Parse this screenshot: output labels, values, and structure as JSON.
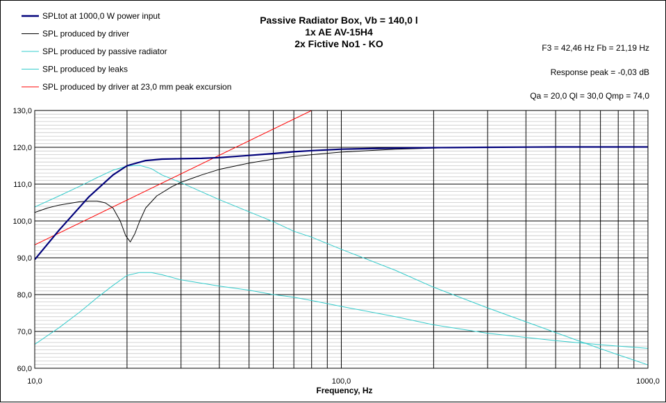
{
  "chart_data": {
    "type": "line",
    "title_lines": [
      "Passive Radiator Box, Vb = 140,0 l",
      "1x AE AV-15H4",
      "2x Fictive No1 - KO"
    ],
    "info": [
      "F3 = 42,46  Hz  Fb = 21,19  Hz",
      "Response peak = -0,03  dB",
      "Qa = 20,0  Ql = 30,0  Qmp = 74,0"
    ],
    "xlabel": "Frequency, Hz",
    "ylabel": "",
    "x_scale": "log",
    "xlim": [
      10,
      1000
    ],
    "ylim": [
      60,
      130
    ],
    "x_ticks": [
      {
        "v": 10,
        "label": "10,0"
      },
      {
        "v": 100,
        "label": "100,0"
      },
      {
        "v": 1000,
        "label": "1000,0"
      }
    ],
    "y_ticks": [
      {
        "v": 60,
        "label": "60,0"
      },
      {
        "v": 70,
        "label": "70,0"
      },
      {
        "v": 80,
        "label": "80,0"
      },
      {
        "v": 90,
        "label": "90,0"
      },
      {
        "v": 100,
        "label": "100,0"
      },
      {
        "v": 110,
        "label": "110,0"
      },
      {
        "v": 120,
        "label": "120,0"
      },
      {
        "v": 130,
        "label": "130,0"
      }
    ],
    "grid": true,
    "legend_position": "top-left",
    "series": [
      {
        "name": "SPLtot at 1000,0 W power input",
        "color": "#00007a",
        "width": 2.2,
        "points": [
          [
            10,
            89.5
          ],
          [
            12,
            97.5
          ],
          [
            15,
            106.5
          ],
          [
            18,
            112.5
          ],
          [
            20,
            115
          ],
          [
            23,
            116.4
          ],
          [
            26,
            116.8
          ],
          [
            30,
            116.9
          ],
          [
            35,
            117
          ],
          [
            40,
            117.2
          ],
          [
            50,
            117.8
          ],
          [
            60,
            118.3
          ],
          [
            70,
            118.8
          ],
          [
            80,
            119.1
          ],
          [
            100,
            119.5
          ],
          [
            150,
            119.8
          ],
          [
            200,
            119.9
          ],
          [
            300,
            120
          ],
          [
            500,
            120.1
          ],
          [
            1000,
            120.1
          ]
        ]
      },
      {
        "name": "SPL produced by driver",
        "color": "#000000",
        "width": 1,
        "points": [
          [
            10,
            102.3
          ],
          [
            11,
            103.5
          ],
          [
            12,
            104.3
          ],
          [
            13,
            104.8
          ],
          [
            14,
            105.2
          ],
          [
            15,
            105.4
          ],
          [
            16,
            105.4
          ],
          [
            17,
            104.9
          ],
          [
            18,
            103.5
          ],
          [
            19,
            100
          ],
          [
            19.8,
            96
          ],
          [
            20.5,
            94.3
          ],
          [
            21.2,
            96.5
          ],
          [
            22,
            100
          ],
          [
            23,
            103.5
          ],
          [
            25,
            106.8
          ],
          [
            28,
            109.3
          ],
          [
            30,
            110.5
          ],
          [
            35,
            112.5
          ],
          [
            40,
            114
          ],
          [
            50,
            115.7
          ],
          [
            60,
            116.8
          ],
          [
            70,
            117.5
          ],
          [
            80,
            118
          ],
          [
            100,
            118.7
          ],
          [
            150,
            119.5
          ],
          [
            200,
            119.8
          ],
          [
            300,
            120
          ],
          [
            500,
            120.1
          ],
          [
            1000,
            120.1
          ]
        ]
      },
      {
        "name": "SPL produced by passive radiator",
        "color": "#33cccc",
        "width": 1,
        "points": [
          [
            10,
            103.8
          ],
          [
            12,
            106.8
          ],
          [
            14,
            109.4
          ],
          [
            16,
            111.8
          ],
          [
            18,
            113.8
          ],
          [
            20,
            114.9
          ],
          [
            22,
            115.1
          ],
          [
            24,
            114.2
          ],
          [
            26,
            112.5
          ],
          [
            30,
            110.4
          ],
          [
            40,
            105.8
          ],
          [
            50,
            102.5
          ],
          [
            60,
            99.8
          ],
          [
            70,
            97.2
          ],
          [
            80,
            95.6
          ],
          [
            100,
            92.3
          ],
          [
            150,
            86.6
          ],
          [
            200,
            82
          ],
          [
            300,
            76.4
          ],
          [
            500,
            69.7
          ],
          [
            700,
            65.3
          ],
          [
            1000,
            60.9
          ]
        ]
      },
      {
        "name": "SPL produced by leaks",
        "color": "#33cccc",
        "width": 1,
        "points": [
          [
            10,
            66.5
          ],
          [
            12,
            71
          ],
          [
            14,
            75.2
          ],
          [
            16,
            79.2
          ],
          [
            18,
            82.5
          ],
          [
            20,
            85.2
          ],
          [
            22,
            86
          ],
          [
            24,
            86
          ],
          [
            26,
            85.4
          ],
          [
            30,
            84
          ],
          [
            40,
            82.3
          ],
          [
            50,
            81.2
          ],
          [
            60,
            80
          ],
          [
            70,
            79.3
          ],
          [
            80,
            78.4
          ],
          [
            100,
            76.8
          ],
          [
            150,
            74
          ],
          [
            200,
            71.8
          ],
          [
            300,
            69.5
          ],
          [
            500,
            67.5
          ],
          [
            700,
            66.4
          ],
          [
            1000,
            65.4
          ]
        ]
      },
      {
        "name": "SPL produced by driver at 23,0 mm peak excursion",
        "color": "#ff0000",
        "width": 1,
        "points": [
          [
            10,
            93.5
          ],
          [
            80,
            130
          ]
        ]
      }
    ]
  }
}
